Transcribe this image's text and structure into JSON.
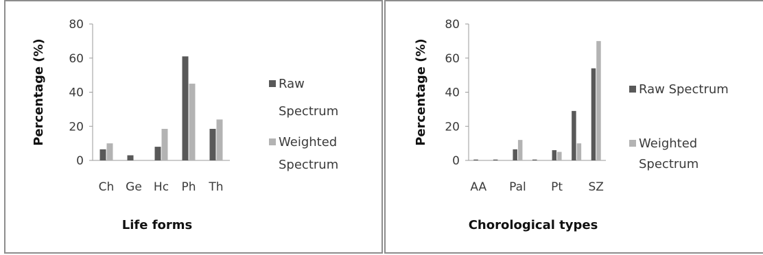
{
  "colors": {
    "raw": "#595959",
    "weighted": "#b3b3b3",
    "axis": "#9a9a9a"
  },
  "chart_data": [
    {
      "type": "bar",
      "categories": [
        "Ch",
        "Ge",
        "Hc",
        "Ph",
        "Th"
      ],
      "category_labels": [
        "Ch",
        "Ge",
        "Hc",
        "Ph",
        "Th"
      ],
      "series": [
        {
          "name": "Raw Spectrum",
          "values": [
            6.5,
            3,
            8,
            61,
            18.5
          ]
        },
        {
          "name": "Weighted Spectrum",
          "values": [
            10,
            0,
            18.5,
            45,
            24
          ]
        }
      ],
      "legend": [
        {
          "lines": [
            "Raw",
            "Spectrum"
          ]
        },
        {
          "lines": [
            "Weighted",
            "Spectrum"
          ]
        }
      ],
      "yticks": [
        "0",
        "20",
        "40",
        "60",
        "80"
      ],
      "ylim": [
        0,
        80
      ],
      "xlabel": "Life forms",
      "ylabel": "Percentage (%)",
      "grid": false,
      "legend_position": "right"
    },
    {
      "type": "bar",
      "categories": [
        "AA",
        "",
        "Pal",
        "",
        "Pt",
        "",
        "SZ"
      ],
      "category_labels": [
        "AA",
        "Pal",
        "Pt",
        "SZ"
      ],
      "series": [
        {
          "name": "Raw Spectrum",
          "values": [
            0.5,
            0.5,
            6.5,
            0.5,
            6,
            29,
            54
          ]
        },
        {
          "name": "Weighted Spectrum",
          "values": [
            0,
            0,
            12,
            0,
            5,
            10,
            70
          ]
        }
      ],
      "legend": [
        {
          "lines": [
            "Raw Spectrum"
          ]
        },
        {
          "lines": [
            "Weighted",
            "Spectrum"
          ]
        }
      ],
      "yticks": [
        "0",
        "20",
        "40",
        "60",
        "80"
      ],
      "ylim": [
        0,
        80
      ],
      "xlabel": "Chorological types",
      "ylabel": "Percentage (%)",
      "grid": false,
      "legend_position": "right"
    }
  ]
}
